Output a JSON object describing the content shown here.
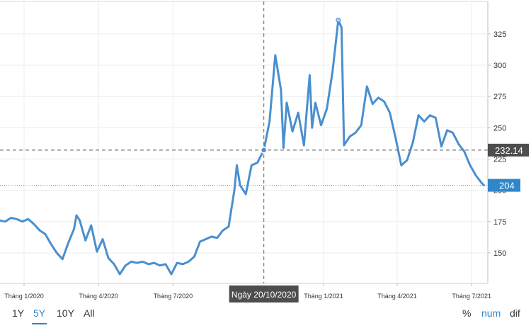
{
  "chart_data": {
    "type": "line",
    "title": "",
    "xlabel": "",
    "ylabel": "",
    "y_ticks": [
      150,
      175,
      200,
      225,
      250,
      275,
      300,
      325
    ],
    "x_ticks": [
      {
        "label": "Tháng 1/2020",
        "date": "2020-01-01"
      },
      {
        "label": "Tháng 4/2020",
        "date": "2020-04-01"
      },
      {
        "label": "Tháng 7/2020",
        "date": "2020-07-01"
      },
      {
        "label": "Tháng 1/2021",
        "date": "2021-01-01"
      },
      {
        "label": "Tháng 4/2021",
        "date": "2021-04-01"
      },
      {
        "label": "Tháng 7/2021",
        "date": "2021-07-01"
      }
    ],
    "series": [
      {
        "color": "#4a8fcf",
        "points": [
          {
            "x": "2019-11-18",
            "y": 176
          },
          {
            "x": "2019-11-25",
            "y": 177
          },
          {
            "x": "2019-12-02",
            "y": 176
          },
          {
            "x": "2019-12-09",
            "y": 175
          },
          {
            "x": "2019-12-16",
            "y": 178
          },
          {
            "x": "2019-12-23",
            "y": 177
          },
          {
            "x": "2019-12-30",
            "y": 175
          },
          {
            "x": "2020-01-06",
            "y": 177
          },
          {
            "x": "2020-01-13",
            "y": 173
          },
          {
            "x": "2020-01-20",
            "y": 168
          },
          {
            "x": "2020-01-27",
            "y": 165
          },
          {
            "x": "2020-02-03",
            "y": 157
          },
          {
            "x": "2020-02-10",
            "y": 150
          },
          {
            "x": "2020-02-17",
            "y": 145
          },
          {
            "x": "2020-02-24",
            "y": 158
          },
          {
            "x": "2020-03-02",
            "y": 169
          },
          {
            "x": "2020-03-05",
            "y": 180
          },
          {
            "x": "2020-03-09",
            "y": 176
          },
          {
            "x": "2020-03-16",
            "y": 160
          },
          {
            "x": "2020-03-23",
            "y": 172
          },
          {
            "x": "2020-03-30",
            "y": 151
          },
          {
            "x": "2020-04-06",
            "y": 161
          },
          {
            "x": "2020-04-13",
            "y": 146
          },
          {
            "x": "2020-04-20",
            "y": 141
          },
          {
            "x": "2020-04-27",
            "y": 133
          },
          {
            "x": "2020-05-04",
            "y": 140
          },
          {
            "x": "2020-05-11",
            "y": 143
          },
          {
            "x": "2020-05-18",
            "y": 142
          },
          {
            "x": "2020-05-25",
            "y": 143
          },
          {
            "x": "2020-06-01",
            "y": 141
          },
          {
            "x": "2020-06-08",
            "y": 142
          },
          {
            "x": "2020-06-15",
            "y": 140
          },
          {
            "x": "2020-06-22",
            "y": 141
          },
          {
            "x": "2020-06-29",
            "y": 133
          },
          {
            "x": "2020-07-06",
            "y": 142
          },
          {
            "x": "2020-07-13",
            "y": 141
          },
          {
            "x": "2020-07-20",
            "y": 143
          },
          {
            "x": "2020-07-27",
            "y": 147
          },
          {
            "x": "2020-08-03",
            "y": 159
          },
          {
            "x": "2020-08-10",
            "y": 161
          },
          {
            "x": "2020-08-17",
            "y": 163
          },
          {
            "x": "2020-08-24",
            "y": 162
          },
          {
            "x": "2020-08-31",
            "y": 168
          },
          {
            "x": "2020-09-07",
            "y": 171
          },
          {
            "x": "2020-09-14",
            "y": 200
          },
          {
            "x": "2020-09-17",
            "y": 220
          },
          {
            "x": "2020-09-21",
            "y": 204
          },
          {
            "x": "2020-09-28",
            "y": 197
          },
          {
            "x": "2020-10-05",
            "y": 220
          },
          {
            "x": "2020-10-12",
            "y": 222
          },
          {
            "x": "2020-10-20",
            "y": 232
          },
          {
            "x": "2020-10-27",
            "y": 255
          },
          {
            "x": "2020-11-03",
            "y": 308
          },
          {
            "x": "2020-11-10",
            "y": 280
          },
          {
            "x": "2020-11-13",
            "y": 234
          },
          {
            "x": "2020-11-17",
            "y": 270
          },
          {
            "x": "2020-11-24",
            "y": 247
          },
          {
            "x": "2020-12-01",
            "y": 262
          },
          {
            "x": "2020-12-08",
            "y": 236
          },
          {
            "x": "2020-12-15",
            "y": 292
          },
          {
            "x": "2020-12-18",
            "y": 250
          },
          {
            "x": "2020-12-22",
            "y": 270
          },
          {
            "x": "2020-12-29",
            "y": 252
          },
          {
            "x": "2021-01-05",
            "y": 265
          },
          {
            "x": "2021-01-12",
            "y": 295
          },
          {
            "x": "2021-01-19",
            "y": 336
          },
          {
            "x": "2021-01-23",
            "y": 330
          },
          {
            "x": "2021-01-26",
            "y": 236
          },
          {
            "x": "2021-02-02",
            "y": 243
          },
          {
            "x": "2021-02-09",
            "y": 246
          },
          {
            "x": "2021-02-16",
            "y": 252
          },
          {
            "x": "2021-02-23",
            "y": 283
          },
          {
            "x": "2021-03-02",
            "y": 269
          },
          {
            "x": "2021-03-09",
            "y": 274
          },
          {
            "x": "2021-03-16",
            "y": 271
          },
          {
            "x": "2021-03-23",
            "y": 262
          },
          {
            "x": "2021-03-30",
            "y": 242
          },
          {
            "x": "2021-04-06",
            "y": 220
          },
          {
            "x": "2021-04-13",
            "y": 224
          },
          {
            "x": "2021-04-20",
            "y": 238
          },
          {
            "x": "2021-04-27",
            "y": 260
          },
          {
            "x": "2021-05-04",
            "y": 255
          },
          {
            "x": "2021-05-11",
            "y": 260
          },
          {
            "x": "2021-05-18",
            "y": 258
          },
          {
            "x": "2021-05-25",
            "y": 235
          },
          {
            "x": "2021-06-01",
            "y": 248
          },
          {
            "x": "2021-06-08",
            "y": 246
          },
          {
            "x": "2021-06-15",
            "y": 237
          },
          {
            "x": "2021-06-22",
            "y": 231
          },
          {
            "x": "2021-06-29",
            "y": 220
          },
          {
            "x": "2021-07-06",
            "y": 212
          },
          {
            "x": "2021-07-13",
            "y": 206
          },
          {
            "x": "2021-07-16",
            "y": 204
          }
        ]
      }
    ],
    "crosshair": {
      "date": "2020-10-20",
      "date_label": "Ngày 20/10/2020",
      "value_label": "232.14",
      "value": 232.14
    },
    "last_value": {
      "label": "204",
      "value": 204
    },
    "grid": true,
    "y_axis_side": "right"
  },
  "controls": {
    "ranges": [
      "1Y",
      "5Y",
      "10Y",
      "All"
    ],
    "active_range": "5Y",
    "modes": [
      "%",
      "num",
      "dif"
    ],
    "active_mode": "num"
  }
}
